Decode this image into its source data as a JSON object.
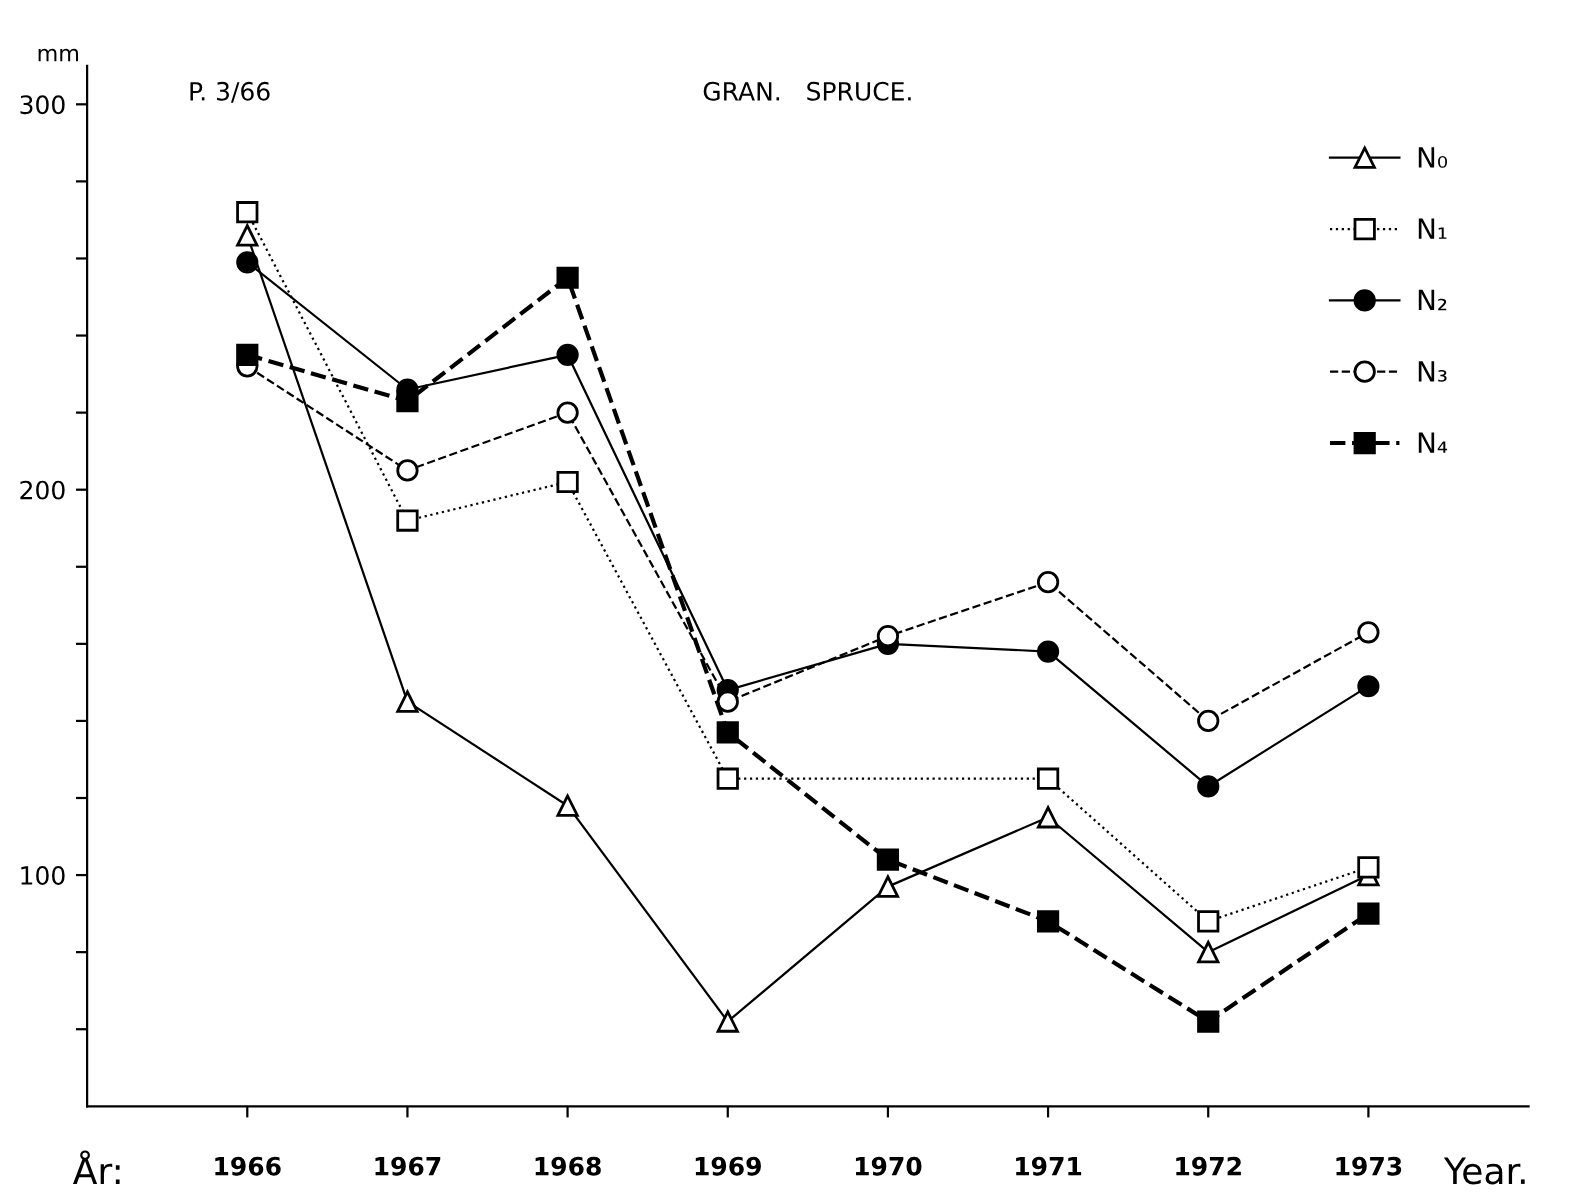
{
  "chart_data": {
    "type": "line",
    "title": "GRAN.   SPRUCE.",
    "ylabel": "mm",
    "xlabel": "Year.",
    "annotations": [
      "P. 3/66",
      "År:"
    ],
    "categories": [
      "1966",
      "1967",
      "1968",
      "1969",
      "1970",
      "1971",
      "1972",
      "1973"
    ],
    "ylim": [
      40,
      310
    ],
    "yticks": [
      {
        "value": 60,
        "label": null
      },
      {
        "value": 80,
        "label": null
      },
      100,
      {
        "value": 120,
        "label": null
      },
      {
        "value": 140,
        "label": null
      },
      {
        "value": 160,
        "label": null
      },
      {
        "value": 180,
        "label": null
      },
      200,
      {
        "value": 220,
        "label": null
      },
      {
        "value": 240,
        "label": null
      },
      {
        "value": 260,
        "label": null
      },
      {
        "value": 280,
        "label": null
      },
      300
    ],
    "grid": false,
    "legend": "top right",
    "series": [
      {
        "name": "N₀",
        "color": "#ffffff",
        "marker": "triangle",
        "line_style": "solid",
        "values": [
          266,
          145,
          118,
          62,
          97,
          115,
          80,
          100
        ]
      },
      {
        "name": "N₁",
        "color": "#ffffff",
        "marker": "square",
        "line_style": "dotted",
        "values": [
          272,
          192,
          202,
          125,
          null,
          125,
          88,
          102
        ]
      },
      {
        "name": "N₂",
        "color": "#000000",
        "marker": "circle",
        "line_style": "solid",
        "values": [
          259,
          226,
          235,
          148,
          160,
          158,
          123,
          149
        ]
      },
      {
        "name": "N₃",
        "color": "#ffffff",
        "marker": "circle",
        "line_style": "dashed",
        "values": [
          232,
          205,
          220,
          145,
          162,
          176,
          140,
          163
        ]
      },
      {
        "name": "N₄",
        "color": "#000000",
        "marker": "square",
        "line_style": "dashed",
        "values": [
          235,
          223,
          255,
          137,
          104,
          88,
          62,
          90
        ]
      }
    ]
  }
}
